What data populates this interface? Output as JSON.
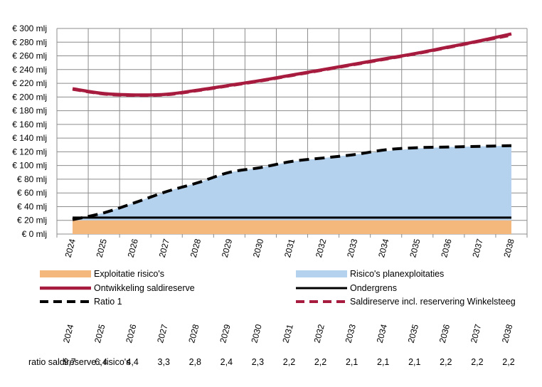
{
  "chart_data": {
    "type": "area",
    "ylim": [
      0,
      300
    ],
    "y_ticks": [
      "€ 0 mlj",
      "€ 20 mlj",
      "€ 40 mlj",
      "€ 60 mlj",
      "€ 80 mlj",
      "€ 100 mlj",
      "€ 120 mlj",
      "€ 140 mlj",
      "€ 160 mlj",
      "€ 180 mlj",
      "€ 200 mlj",
      "€ 220 mlj",
      "€ 240 mlj",
      "€ 260 mlj",
      "€ 280 mlj",
      "€ 300 mlj"
    ],
    "y_tick_values": [
      0,
      20,
      40,
      60,
      80,
      100,
      120,
      140,
      160,
      180,
      200,
      220,
      240,
      260,
      280,
      300
    ],
    "categories": [
      "2024",
      "2025",
      "2026",
      "2027",
      "2028",
      "2029",
      "2030",
      "2031",
      "2032",
      "2033",
      "2034",
      "2035",
      "2036",
      "2037",
      "2038"
    ],
    "grid": true,
    "series": [
      {
        "name": "Exploitatie risico's",
        "type": "area",
        "color": "#f4b77c",
        "values": [
          20,
          20,
          20,
          20,
          20,
          20,
          20,
          20,
          20,
          20,
          20,
          20,
          20,
          20,
          20
        ]
      },
      {
        "name": "Risico's planexploitaties",
        "type": "area",
        "color": "#b4d1ed",
        "values": [
          20,
          31,
          46,
          62,
          75,
          90,
          97,
          106,
          111,
          116,
          121,
          125,
          127,
          128,
          129
        ]
      },
      {
        "name": "Ontwikkeling saldireserve",
        "type": "line",
        "color": "#a61b3e",
        "values": [
          212,
          205,
          203,
          204,
          210,
          217,
          224,
          232,
          240,
          248,
          256,
          264,
          273,
          282,
          292
        ]
      },
      {
        "name": "Ondergrens",
        "type": "line",
        "color": "#000000",
        "values": [
          24,
          24,
          24,
          24,
          24,
          24,
          24,
          24,
          24,
          24,
          24,
          24,
          24,
          24,
          24
        ]
      },
      {
        "name": "Ratio 1",
        "type": "dashed-line",
        "color": "#000000",
        "values": [
          21,
          31,
          46,
          62,
          75,
          90,
          97,
          106,
          111,
          116,
          123,
          126,
          127,
          128,
          129
        ]
      },
      {
        "name": "Saldireserve incl. reservering Winkelsteeg",
        "type": "dashed-line",
        "color": "#a61b3e",
        "values": [
          211,
          204,
          202,
          203,
          209,
          216,
          223,
          231,
          239,
          247,
          255,
          263,
          272,
          281,
          290
        ]
      }
    ],
    "legend_placement": "bottom"
  },
  "ratio_table": {
    "label": "ratio saldireserve : risico's",
    "years": [
      "2024",
      "2025",
      "2026",
      "2027",
      "2028",
      "2029",
      "2030",
      "2031",
      "2032",
      "2033",
      "2034",
      "2035",
      "2036",
      "2037",
      "2038"
    ],
    "values": [
      "9,7",
      "6,4",
      "4,4",
      "3,3",
      "2,8",
      "2,4",
      "2,3",
      "2,2",
      "2,2",
      "2,1",
      "2,1",
      "2,1",
      "2,2",
      "2,2",
      "2,2"
    ]
  }
}
